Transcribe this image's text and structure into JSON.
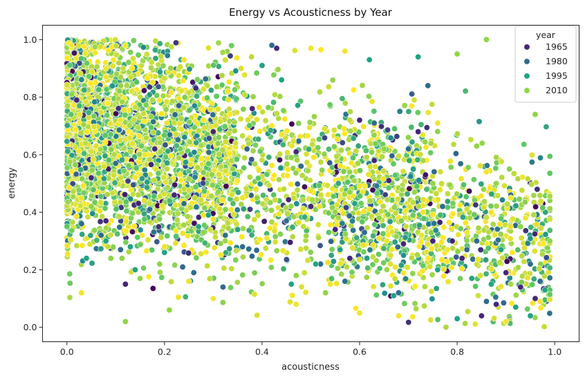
{
  "chart_data": {
    "type": "scatter",
    "title": "Energy vs Acousticness by Year",
    "xlabel": "acousticness",
    "ylabel": "energy",
    "xlim": [
      -0.05,
      1.05
    ],
    "ylim": [
      -0.05,
      1.05
    ],
    "xticks": [
      "0.0",
      "0.2",
      "0.4",
      "0.6",
      "0.8",
      "1.0"
    ],
    "yticks": [
      "0.0",
      "0.2",
      "0.4",
      "0.6",
      "0.8",
      "1.0"
    ],
    "grid": false,
    "legend": {
      "title": "year",
      "placement": "top-right",
      "entries": [
        {
          "label": "1965",
          "color": "#45277b"
        },
        {
          "label": "1980",
          "color": "#2f6c8e"
        },
        {
          "label": "1995",
          "color": "#22a384"
        },
        {
          "label": "2010",
          "color": "#8fd644"
        }
      ]
    },
    "hue_palette": "viridis",
    "hue_range": [
      1950,
      2020
    ],
    "series": [
      {
        "name": "1965",
        "x": [
          0.05,
          0.12,
          0.18,
          0.3,
          0.43,
          0.5,
          0.55,
          0.6,
          0.63,
          0.69,
          0.72,
          0.75,
          0.79,
          0.85,
          0.88,
          0.93,
          0.96,
          0.02,
          0.08,
          0.22,
          0.38,
          0.47,
          0.58,
          0.66,
          0.81,
          0.9
        ],
        "y": [
          0.52,
          0.15,
          0.62,
          0.68,
          0.97,
          0.42,
          0.34,
          0.72,
          0.58,
          0.29,
          0.68,
          0.3,
          0.3,
          0.04,
          0.08,
          0.14,
          0.1,
          0.79,
          0.37,
          0.46,
          0.76,
          0.61,
          0.24,
          0.51,
          0.24,
          0.19
        ]
      },
      {
        "name": "1980",
        "x": [
          0.03,
          0.07,
          0.11,
          0.17,
          0.26,
          0.32,
          0.42,
          0.45,
          0.52,
          0.57,
          0.61,
          0.68,
          0.74,
          0.77,
          0.82,
          0.86,
          0.91,
          0.95,
          0.1,
          0.24,
          0.36,
          0.48,
          0.63,
          0.7,
          0.84,
          0.97
        ],
        "y": [
          0.36,
          0.32,
          0.27,
          0.41,
          0.19,
          0.14,
          0.98,
          0.37,
          0.22,
          0.16,
          0.33,
          0.12,
          0.84,
          0.42,
          0.27,
          0.09,
          0.46,
          0.22,
          0.57,
          0.43,
          0.28,
          0.56,
          0.71,
          0.62,
          0.3,
          0.16
        ]
      },
      {
        "name": "1995",
        "x": [
          0.04,
          0.08,
          0.14,
          0.2,
          0.27,
          0.35,
          0.4,
          0.46,
          0.51,
          0.56,
          0.62,
          0.67,
          0.72,
          0.76,
          0.8,
          0.83,
          0.87,
          0.92,
          0.95,
          0.98,
          0.13,
          0.29,
          0.44,
          0.59,
          0.71,
          0.89
        ],
        "y": [
          0.24,
          0.3,
          0.2,
          0.26,
          0.35,
          0.34,
          0.91,
          0.15,
          0.22,
          0.27,
          0.93,
          0.11,
          0.94,
          0.2,
          0.03,
          0.17,
          0.15,
          0.07,
          0.04,
          0.13,
          0.28,
          0.39,
          0.86,
          0.43,
          0.55,
          0.27
        ]
      },
      {
        "name": "2010",
        "x": [
          0.01,
          0.05,
          0.09,
          0.15,
          0.21,
          0.28,
          0.34,
          0.39,
          0.46,
          0.53,
          0.58,
          0.64,
          0.7,
          0.75,
          0.8,
          0.84,
          0.88,
          0.93,
          0.96,
          0.99,
          0.12,
          0.19,
          0.31,
          0.47,
          0.65,
          0.86
        ],
        "y": [
          0.81,
          0.42,
          0.24,
          0.17,
          0.06,
          0.33,
          0.55,
          0.45,
          0.59,
          0.12,
          0.47,
          0.38,
          0.66,
          0.5,
          0.95,
          0.63,
          0.5,
          0.35,
          0.74,
          0.3,
          0.02,
          0.22,
          0.47,
          0.18,
          0.62,
          1.0
        ]
      },
      {
        "name": "",
        "x": [
          0.03,
          0.08,
          0.12,
          0.16,
          0.2,
          0.25,
          0.3,
          0.36,
          0.41,
          0.47,
          0.5,
          0.54,
          0.6,
          0.64,
          0.68,
          0.73,
          0.78,
          0.82,
          0.86,
          0.9,
          0.94,
          0.97,
          0.01,
          0.11,
          0.24,
          0.33,
          0.44,
          0.57,
          0.62,
          0.76,
          0.91
        ],
        "y": [
          0.12,
          0.9,
          0.98,
          0.6,
          0.28,
          0.16,
          0.1,
          0.45,
          0.31,
          0.08,
          0.97,
          0.15,
          0.05,
          0.31,
          0.04,
          0.4,
          0.27,
          0.33,
          0.54,
          0.02,
          0.38,
          0.09,
          0.98,
          0.72,
          0.93,
          0.82,
          0.67,
          0.96,
          0.41,
          0.71,
          0.45
        ]
      }
    ]
  }
}
